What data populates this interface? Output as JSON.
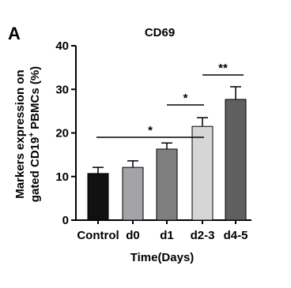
{
  "panel_label": "A",
  "chart_data": {
    "type": "bar",
    "title": "CD69",
    "xlabel": "Time(Days)",
    "ylabel_line1": "Markers expression on",
    "ylabel_line2": [
      "gated CD19",
      "+",
      "PBMCs (%)"
    ],
    "categories": [
      "Control",
      "d0",
      "d1",
      "d2-3",
      "d4-5"
    ],
    "values": [
      10.7,
      12.1,
      16.3,
      21.5,
      27.7
    ],
    "errors": [
      1.4,
      1.5,
      1.4,
      2.0,
      2.9
    ],
    "colors": [
      "#111111",
      "#a3a3a8",
      "#7f7f7f",
      "#d6d6d6",
      "#5f5f5f"
    ],
    "ylim": [
      0,
      40
    ],
    "yticks": [
      0,
      10,
      20,
      30,
      40
    ],
    "annotations": [
      {
        "text": "*"
      },
      {
        "text": "*"
      },
      {
        "text": "**"
      }
    ]
  }
}
